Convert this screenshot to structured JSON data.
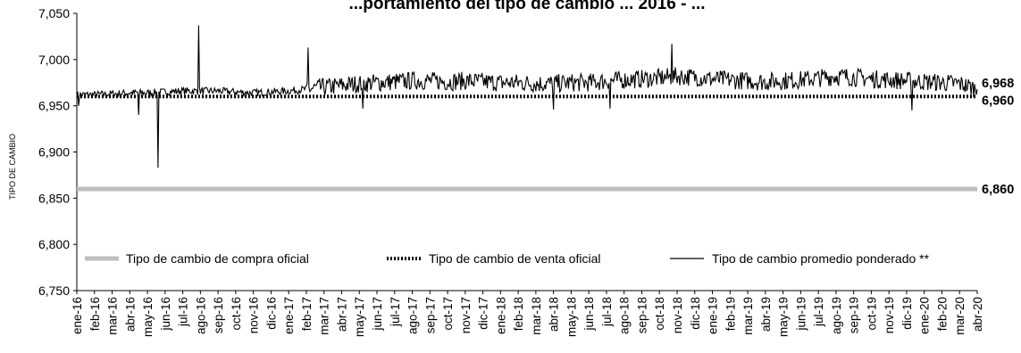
{
  "chart_data": {
    "type": "line",
    "title": "...portamiento del tipo de cambio ... 2016 - ...",
    "ylabel": "TIPO DE CAMBIO",
    "xlabel": "",
    "ylim": [
      6.75,
      7.05
    ],
    "y_ticks": [
      6.75,
      6.8,
      6.85,
      6.9,
      6.95,
      7.0,
      7.05
    ],
    "y_tick_labels": [
      "6,750",
      "6,800",
      "6,850",
      "6,900",
      "6,950",
      "7,000",
      "7,050"
    ],
    "x_tick_labels": [
      "ene-16",
      "feb-16",
      "mar-16",
      "abr-16",
      "may-16",
      "jun-16",
      "jul-16",
      "ago-16",
      "sep-16",
      "oct-16",
      "nov-16",
      "dic-16",
      "ene-17",
      "feb-17",
      "mar-17",
      "abr-17",
      "may-17",
      "jun-17",
      "jul-17",
      "ago-17",
      "sep-17",
      "oct-17",
      "nov-17",
      "dic-17",
      "ene-18",
      "feb-18",
      "mar-18",
      "abr-18",
      "may-18",
      "jun-18",
      "jul-18",
      "ago-18",
      "sep-18",
      "oct-18",
      "nov-18",
      "dic-18",
      "ene-19",
      "feb-19",
      "mar-19",
      "abr-19",
      "may-19",
      "jun-19",
      "jul-19",
      "ago-19",
      "sep-19",
      "oct-19",
      "nov-19",
      "dic-19",
      "ene-20",
      "feb-20",
      "mar-20",
      "abr-20"
    ],
    "grid": false,
    "legend_position": "bottom-inside",
    "series": [
      {
        "name": "Tipo de cambio de compra oficial",
        "style": "thick-gray",
        "color": "#bfbfbf",
        "constant": 6.86,
        "end_label": "6,860"
      },
      {
        "name": "Tipo de cambio de venta oficial",
        "style": "dotted-black",
        "color": "#000000",
        "constant": 6.96,
        "end_label": "6,960"
      },
      {
        "name": "Tipo de cambio promedio ponderado **",
        "style": "thin-black",
        "color": "#000000",
        "end_label": "6,968",
        "monthly_avg": [
          6.962,
          6.962,
          6.963,
          6.964,
          6.964,
          6.965,
          6.966,
          6.966,
          6.966,
          6.965,
          6.964,
          6.965,
          6.966,
          6.968,
          6.97,
          6.972,
          6.974,
          6.975,
          6.976,
          6.977,
          6.977,
          6.976,
          6.977,
          6.976,
          6.975,
          6.975,
          6.974,
          6.974,
          6.975,
          6.975,
          6.977,
          6.978,
          6.979,
          6.98,
          6.982,
          6.981,
          6.979,
          6.978,
          6.977,
          6.976,
          6.977,
          6.978,
          6.98,
          6.982,
          6.981,
          6.979,
          6.978,
          6.977,
          6.976,
          6.975,
          6.974,
          6.968
        ],
        "spikes": [
          {
            "month": 0.1,
            "value": 6.95
          },
          {
            "month": 3.5,
            "value": 6.94
          },
          {
            "month": 4.6,
            "value": 6.883
          },
          {
            "month": 6.9,
            "value": 7.037
          },
          {
            "month": 13.1,
            "value": 7.013
          },
          {
            "month": 16.2,
            "value": 6.947
          },
          {
            "month": 27.0,
            "value": 6.946
          },
          {
            "month": 30.2,
            "value": 6.947
          },
          {
            "month": 33.7,
            "value": 7.017
          },
          {
            "month": 47.3,
            "value": 6.945
          }
        ]
      }
    ]
  }
}
